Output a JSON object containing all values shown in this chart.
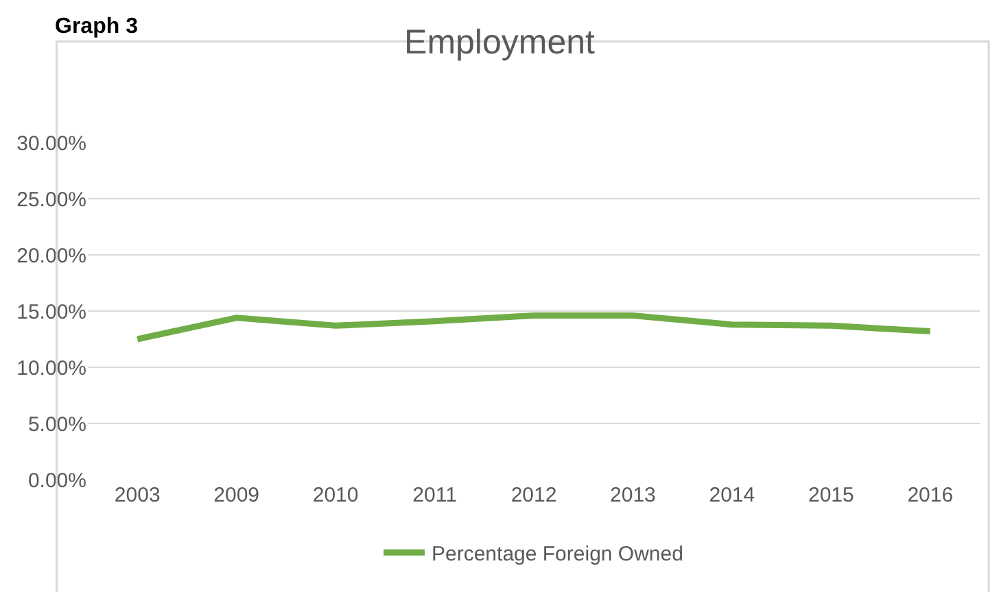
{
  "chart_data": {
    "type": "line",
    "title": "Employment",
    "annotations": [
      "Graph 3"
    ],
    "categories": [
      "2003",
      "2009",
      "2010",
      "2011",
      "2012",
      "2013",
      "2014",
      "2015",
      "2016"
    ],
    "series": [
      {
        "name": "Percentage Foreign Owned",
        "color": "#70ad47",
        "values": [
          12.5,
          14.4,
          13.7,
          14.1,
          14.6,
          14.6,
          13.8,
          13.7,
          13.2
        ]
      }
    ],
    "ylim": [
      0,
      30
    ],
    "yticks": [
      {
        "value": 0,
        "label": "0.00%"
      },
      {
        "value": 5,
        "label": "5.00%"
      },
      {
        "value": 10,
        "label": "10.00%"
      },
      {
        "value": 15,
        "label": "15.00%"
      },
      {
        "value": 20,
        "label": "20.00%"
      },
      {
        "value": 25,
        "label": "25.00%"
      },
      {
        "value": 30,
        "label": "30.00%"
      }
    ],
    "grid": "y",
    "legend": "bottom",
    "marker": "none",
    "line_style": "solid"
  }
}
